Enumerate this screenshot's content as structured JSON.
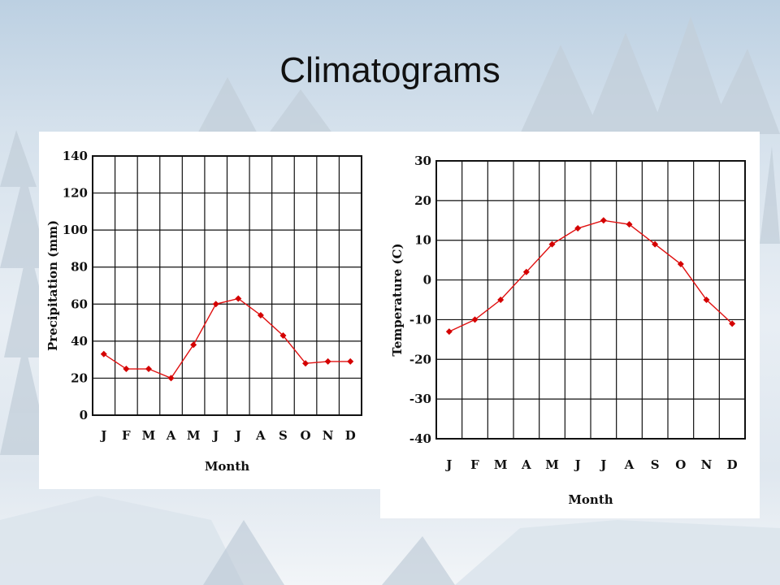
{
  "slide": {
    "title": "Climatograms"
  },
  "chart_data": [
    {
      "type": "line",
      "title": "",
      "xlabel": "Month",
      "ylabel": "Precipitation (mm)",
      "categories": [
        "J",
        "F",
        "M",
        "A",
        "M",
        "J",
        "J",
        "A",
        "S",
        "O",
        "N",
        "D"
      ],
      "series": [
        {
          "values": [
            33,
            25,
            25,
            20,
            38,
            60,
            63,
            54,
            43,
            28,
            29,
            29
          ]
        }
      ],
      "ylim": [
        0,
        140
      ],
      "yticks": [
        0,
        20,
        40,
        60,
        80,
        100,
        120,
        140
      ],
      "grid": true,
      "line_color": "#e01010",
      "marker_color": "#d40000"
    },
    {
      "type": "line",
      "title": "",
      "xlabel": "Month",
      "ylabel": "Temperature (C)",
      "categories": [
        "J",
        "F",
        "M",
        "A",
        "M",
        "J",
        "J",
        "A",
        "S",
        "O",
        "N",
        "D"
      ],
      "series": [
        {
          "values": [
            -13,
            -10,
            -5,
            2,
            9,
            13,
            15,
            14,
            9,
            4,
            -5,
            -11
          ]
        }
      ],
      "ylim": [
        -40,
        30
      ],
      "yticks": [
        -40,
        -30,
        -20,
        -10,
        0,
        10,
        20,
        30
      ],
      "grid": true,
      "line_color": "#e01010",
      "marker_color": "#d40000"
    }
  ]
}
